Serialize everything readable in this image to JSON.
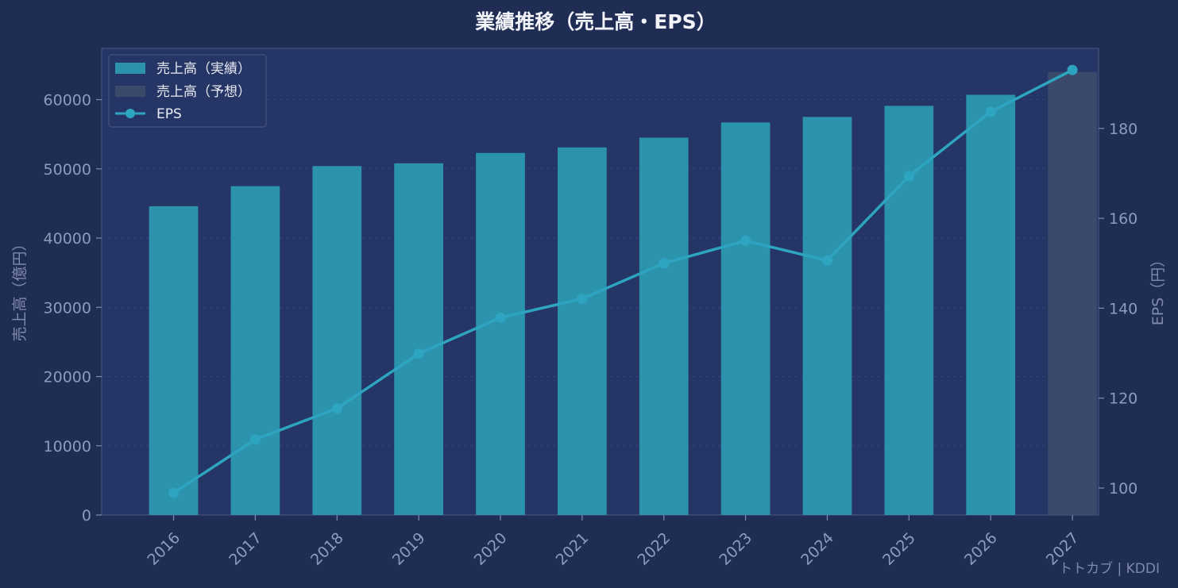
{
  "chart_data": {
    "type": "bar",
    "title": "業績推移（売上高・EPS）",
    "ylabel_left": "売上高（億円）",
    "ylabel_right": "EPS（円）",
    "categories": [
      "2016",
      "2017",
      "2018",
      "2019",
      "2020",
      "2021",
      "2022",
      "2023",
      "2024",
      "2025",
      "2026",
      "2027"
    ],
    "series": [
      {
        "name": "売上高（実績）",
        "kind": "bar",
        "axis": "left",
        "color": "#2c93ad",
        "values": [
          44600,
          47500,
          50400,
          50800,
          52300,
          53100,
          54500,
          56700,
          57500,
          59100,
          60700,
          null
        ]
      },
      {
        "name": "売上高（予想）",
        "kind": "bar",
        "axis": "left",
        "color": "#3b4a6b",
        "values": [
          null,
          null,
          null,
          null,
          null,
          null,
          null,
          null,
          null,
          null,
          null,
          64000
        ]
      },
      {
        "name": "EPS",
        "kind": "line",
        "axis": "right",
        "color": "#2ea5c0",
        "values": [
          98.9,
          110.8,
          117.7,
          129.9,
          137.9,
          142.1,
          150.0,
          155.0,
          150.6,
          169.4,
          183.7,
          193.0
        ]
      }
    ],
    "ylim_left": [
      0,
      67400
    ],
    "yticks_left": [
      0,
      10000,
      20000,
      30000,
      40000,
      50000,
      60000
    ],
    "ylim_right": [
      94.0,
      197.8
    ],
    "yticks_right": [
      100,
      120,
      140,
      160,
      180
    ],
    "grid": true,
    "legend_position": "top-left"
  },
  "watermark": "トトカブ | KDDI",
  "colors": {
    "background": "#1f2d55",
    "plot_background": "#253566",
    "actual_bar": "#2c93ad",
    "forecast_bar": "#3b4a6b",
    "eps_line": "#2ea5c0"
  }
}
